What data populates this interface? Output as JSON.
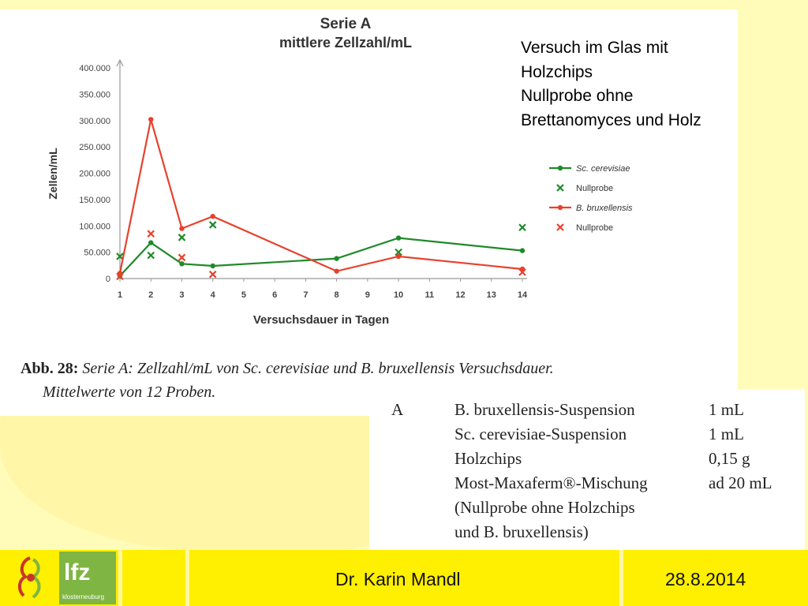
{
  "chart_data": {
    "type": "line",
    "title": "Serie A",
    "subtitle": "mittlere Zellzahl/mL",
    "xlabel": "Versuchsdauer in Tagen",
    "ylabel": "Zellen/mL",
    "xlim": [
      1,
      14
    ],
    "ylim": [
      0,
      400000
    ],
    "x_ticks": [
      "1",
      "2",
      "3",
      "4",
      "5",
      "6",
      "7",
      "8",
      "9",
      "10",
      "11",
      "12",
      "13",
      "14"
    ],
    "y_ticks": [
      "0",
      "50.000",
      "100.000",
      "150.000",
      "200.000",
      "250.000",
      "300.000",
      "350.000",
      "400.000"
    ],
    "y_tick_values": [
      0,
      50000,
      100000,
      150000,
      200000,
      250000,
      300000,
      350000,
      400000
    ],
    "legend_position": "right",
    "series": [
      {
        "name": "Sc. cerevisiae",
        "style": "line",
        "color": "#1e8a2a",
        "x": [
          1,
          2,
          3,
          4,
          8,
          10,
          14
        ],
        "y": [
          5000,
          68000,
          28000,
          24000,
          38000,
          77000,
          53000
        ]
      },
      {
        "name": "Nullprobe",
        "style": "cross",
        "color": "#1e8a2a",
        "x": [
          1,
          2,
          3,
          4,
          10,
          14
        ],
        "y": [
          42000,
          44000,
          78000,
          102000,
          50000,
          97000
        ]
      },
      {
        "name": "B. bruxellensis",
        "style": "line",
        "color": "#e8412c",
        "x": [
          1,
          2,
          3,
          4,
          8,
          10,
          14
        ],
        "y": [
          10000,
          302000,
          95000,
          118000,
          14000,
          42000,
          18000
        ]
      },
      {
        "name": "Nullprobe",
        "style": "cross",
        "color": "#e8412c",
        "x": [
          1,
          2,
          3,
          4,
          14
        ],
        "y": [
          4000,
          85000,
          40000,
          8000,
          12000
        ]
      }
    ]
  },
  "note": {
    "lines": [
      "Versuch im Glas mit",
      "Holzchips",
      "Nullprobe ohne",
      "Brettanomyces und Holz"
    ]
  },
  "caption": {
    "label": "Abb. 28:",
    "line1": "Serie A: Zellzahl/mL von Sc. cerevisiae und B. bruxellensis Versuchsdauer.",
    "line2": "Mittelwerte von 12 Proben."
  },
  "recipe": {
    "rows": [
      {
        "c0": "A",
        "c1": "B. bruxellensis-Suspension",
        "c2": "1 mL"
      },
      {
        "c0": "",
        "c1": "Sc. cerevisiae-Suspension",
        "c2": "1 mL"
      },
      {
        "c0": "",
        "c1": "Holzchips",
        "c2": "0,15 g"
      },
      {
        "c0": "",
        "c1": "Most-Maxaferm®-Mischung",
        "c2": "ad 20 mL"
      },
      {
        "c0": "",
        "c1": "(Nullprobe ohne Holzchips",
        "c2": ""
      },
      {
        "c0": "",
        "c1": "und B. bruxellensis)",
        "c2": ""
      }
    ]
  },
  "footer": {
    "author": "Dr. Karin Mandl",
    "date": "28.8.2014",
    "logo_text": "lfz",
    "logo_sub": "klosterneuburg"
  }
}
